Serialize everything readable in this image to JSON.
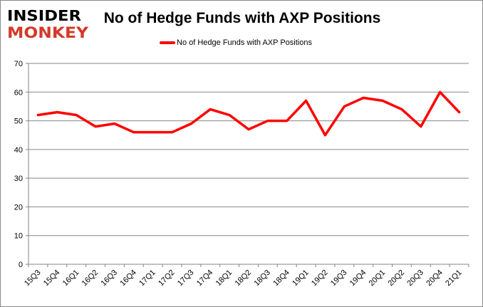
{
  "logo": {
    "line1": "INSIDER",
    "line2": "MONKEY",
    "color1": "#000000",
    "color2": "#d23a2a"
  },
  "chart_data": {
    "type": "line",
    "title": "No of Hedge Funds with AXP Positions",
    "xlabel": "",
    "ylabel": "",
    "ylim": [
      0,
      70
    ],
    "yticks": [
      0,
      10,
      20,
      30,
      40,
      50,
      60,
      70
    ],
    "grid": true,
    "legend_placement": "top",
    "categories": [
      "15Q3",
      "15Q4",
      "16Q1",
      "16Q2",
      "16Q3",
      "16Q4",
      "17Q1",
      "17Q2",
      "17Q3",
      "17Q4",
      "18Q1",
      "18Q2",
      "18Q3",
      "18Q4",
      "19Q1",
      "19Q2",
      "19Q3",
      "19Q4",
      "20Q1",
      "20Q2",
      "20Q3",
      "20Q4",
      "21Q1"
    ],
    "series": [
      {
        "name": "No of Hedge Funds with AXP Positions",
        "color": "#ff0000",
        "values": [
          52,
          53,
          52,
          48,
          49,
          46,
          46,
          46,
          49,
          54,
          52,
          47,
          50,
          50,
          57,
          45,
          55,
          58,
          57,
          54,
          48,
          60,
          53
        ]
      }
    ]
  }
}
